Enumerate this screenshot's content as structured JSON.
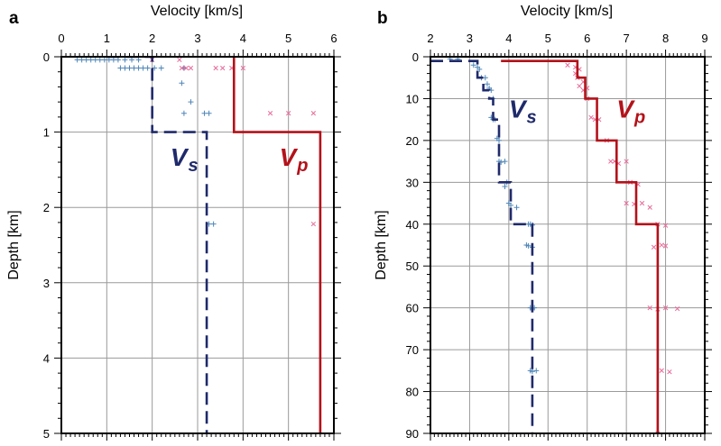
{
  "colors": {
    "vs_line": "#1f2a6b",
    "vp_line": "#b3121a",
    "vs_marker": "#4f86b8",
    "vp_marker": "#e86b9a",
    "grid": "#9a9a9a"
  },
  "chart_data": [
    {
      "type": "line",
      "panel": "a",
      "xlabel": "Velocity [km/s]",
      "ylabel": "Depth [km]",
      "xlim": [
        0,
        6
      ],
      "ylim": [
        0,
        5
      ],
      "y_inverted": true,
      "x_axis_position": "top",
      "x_ticks": [
        0,
        1,
        2,
        3,
        4,
        5,
        6
      ],
      "y_ticks": [
        0,
        1,
        2,
        3,
        4,
        5
      ],
      "grid": true,
      "series_labels": [
        {
          "series": "Vs",
          "main": "V",
          "sub": "s",
          "x": 2.4,
          "y": 1.45
        },
        {
          "series": "Vp",
          "main": "V",
          "sub": "p",
          "x": 4.8,
          "y": 1.45
        }
      ],
      "series": [
        {
          "id": "Vs",
          "style": "dashed",
          "x": [
            1.0,
            2.0,
            2.0,
            3.2,
            3.2
          ],
          "y": [
            0,
            0,
            1.0,
            1.0,
            5.0
          ]
        },
        {
          "id": "Vp",
          "style": "solid",
          "x": [
            3.8,
            3.8,
            5.7,
            5.7
          ],
          "y": [
            0,
            1.0,
            1.0,
            5.0
          ]
        }
      ],
      "scatter": [
        {
          "id": "Vs-samples",
          "marker": "plus",
          "points": [
            [
              0.35,
              0.04
            ],
            [
              0.45,
              0.04
            ],
            [
              0.55,
              0.04
            ],
            [
              0.65,
              0.04
            ],
            [
              0.75,
              0.04
            ],
            [
              0.85,
              0.04
            ],
            [
              0.95,
              0.04
            ],
            [
              1.05,
              0.04
            ],
            [
              1.15,
              0.04
            ],
            [
              1.25,
              0.04
            ],
            [
              1.4,
              0.04
            ],
            [
              1.55,
              0.04
            ],
            [
              1.7,
              0.04
            ],
            [
              1.3,
              0.15
            ],
            [
              1.4,
              0.15
            ],
            [
              1.5,
              0.15
            ],
            [
              1.6,
              0.15
            ],
            [
              1.7,
              0.15
            ],
            [
              1.8,
              0.15
            ],
            [
              1.9,
              0.15
            ],
            [
              2.05,
              0.15
            ],
            [
              2.2,
              0.15
            ],
            [
              2.7,
              0.15
            ],
            [
              2.65,
              0.35
            ],
            [
              2.85,
              0.6
            ],
            [
              2.7,
              0.75
            ],
            [
              3.15,
              0.75
            ],
            [
              3.25,
              0.75
            ],
            [
              3.25,
              2.22
            ],
            [
              3.35,
              2.22
            ]
          ]
        },
        {
          "id": "Vp-samples",
          "marker": "cross",
          "points": [
            [
              2.0,
              0.04
            ],
            [
              2.6,
              0.04
            ],
            [
              2.65,
              0.15
            ],
            [
              2.75,
              0.15
            ],
            [
              2.85,
              0.15
            ],
            [
              3.4,
              0.15
            ],
            [
              3.55,
              0.15
            ],
            [
              3.75,
              0.15
            ],
            [
              4.0,
              0.15
            ],
            [
              4.6,
              0.75
            ],
            [
              5.0,
              0.75
            ],
            [
              5.55,
              0.75
            ],
            [
              5.55,
              2.22
            ]
          ]
        }
      ]
    },
    {
      "type": "line",
      "panel": "b",
      "xlabel": "Velocity [km/s]",
      "ylabel": "Depth [km]",
      "xlim": [
        2,
        9
      ],
      "ylim": [
        0,
        90
      ],
      "y_inverted": true,
      "x_axis_position": "top",
      "x_ticks": [
        2,
        3,
        4,
        5,
        6,
        7,
        8,
        9
      ],
      "y_ticks": [
        0,
        10,
        20,
        30,
        40,
        50,
        60,
        70,
        80,
        90
      ],
      "grid": true,
      "series_labels": [
        {
          "series": "Vs",
          "main": "V",
          "sub": "s",
          "x": 4.0,
          "y": 14.5
        },
        {
          "series": "Vp",
          "main": "V",
          "sub": "p",
          "x": 6.75,
          "y": 14.5
        }
      ],
      "series": [
        {
          "id": "Vs",
          "style": "dashed",
          "x": [
            2.0,
            3.2,
            3.2,
            3.35,
            3.35,
            3.5,
            3.5,
            3.6,
            3.6,
            3.75,
            3.75,
            4.05,
            4.05,
            4.6,
            4.6
          ],
          "y": [
            1,
            1,
            5,
            5,
            8,
            8,
            10,
            10,
            15,
            15,
            30,
            30,
            40,
            40,
            90
          ]
        },
        {
          "id": "Vp",
          "style": "solid",
          "x": [
            3.8,
            5.75,
            5.75,
            5.95,
            5.95,
            6.25,
            6.25,
            6.75,
            6.75,
            7.25,
            7.25,
            7.8,
            7.8
          ],
          "y": [
            1,
            1,
            5,
            5,
            10,
            10,
            20,
            20,
            30,
            30,
            40,
            40,
            90
          ]
        }
      ],
      "scatter": [
        {
          "id": "Vs-samples",
          "marker": "plus",
          "points": [
            [
              2.5,
              0.5
            ],
            [
              2.7,
              0.5
            ],
            [
              3.1,
              2
            ],
            [
              3.2,
              2.5
            ],
            [
              3.25,
              3
            ],
            [
              3.3,
              5
            ],
            [
              3.4,
              5
            ],
            [
              3.45,
              6.5
            ],
            [
              3.5,
              7.5
            ],
            [
              3.55,
              8
            ],
            [
              3.6,
              10
            ],
            [
              3.55,
              14.5
            ],
            [
              3.6,
              15
            ],
            [
              3.65,
              15
            ],
            [
              3.7,
              19.5
            ],
            [
              3.75,
              20
            ],
            [
              3.8,
              25.2
            ],
            [
              3.9,
              25
            ],
            [
              3.75,
              25
            ],
            [
              3.95,
              30
            ],
            [
              3.9,
              31
            ],
            [
              4.0,
              35
            ],
            [
              4.05,
              35.5
            ],
            [
              4.2,
              36
            ],
            [
              4.5,
              40
            ],
            [
              4.55,
              40
            ],
            [
              4.6,
              40.2
            ],
            [
              4.45,
              45
            ],
            [
              4.5,
              45.2
            ],
            [
              4.6,
              45.5
            ],
            [
              4.55,
              60
            ],
            [
              4.6,
              60.3
            ],
            [
              4.65,
              60
            ],
            [
              4.55,
              75
            ],
            [
              4.6,
              75.2
            ],
            [
              4.7,
              75
            ]
          ]
        },
        {
          "id": "Vp-samples",
          "marker": "cross",
          "points": [
            [
              5.5,
              2
            ],
            [
              5.7,
              2.5
            ],
            [
              5.8,
              3
            ],
            [
              5.7,
              4
            ],
            [
              5.75,
              5
            ],
            [
              5.9,
              6
            ],
            [
              5.8,
              7
            ],
            [
              6.0,
              7.5
            ],
            [
              5.9,
              8
            ],
            [
              6.0,
              10
            ],
            [
              6.1,
              14.5
            ],
            [
              6.2,
              15
            ],
            [
              6.3,
              15
            ],
            [
              6.5,
              20
            ],
            [
              6.6,
              25
            ],
            [
              6.7,
              25
            ],
            [
              6.8,
              25.5
            ],
            [
              7.0,
              25
            ],
            [
              7.1,
              30
            ],
            [
              7.3,
              30.5
            ],
            [
              7.0,
              35
            ],
            [
              7.2,
              35.2
            ],
            [
              7.4,
              35
            ],
            [
              7.6,
              36
            ],
            [
              7.8,
              40
            ],
            [
              8.0,
              40.3
            ],
            [
              7.9,
              45
            ],
            [
              8.0,
              45.2
            ],
            [
              7.7,
              45.5
            ],
            [
              7.6,
              60
            ],
            [
              7.8,
              60.3
            ],
            [
              8.0,
              60
            ],
            [
              8.3,
              60.2
            ],
            [
              7.9,
              75
            ],
            [
              8.1,
              75.3
            ],
            [
              7.8,
              90
            ]
          ]
        }
      ]
    }
  ]
}
